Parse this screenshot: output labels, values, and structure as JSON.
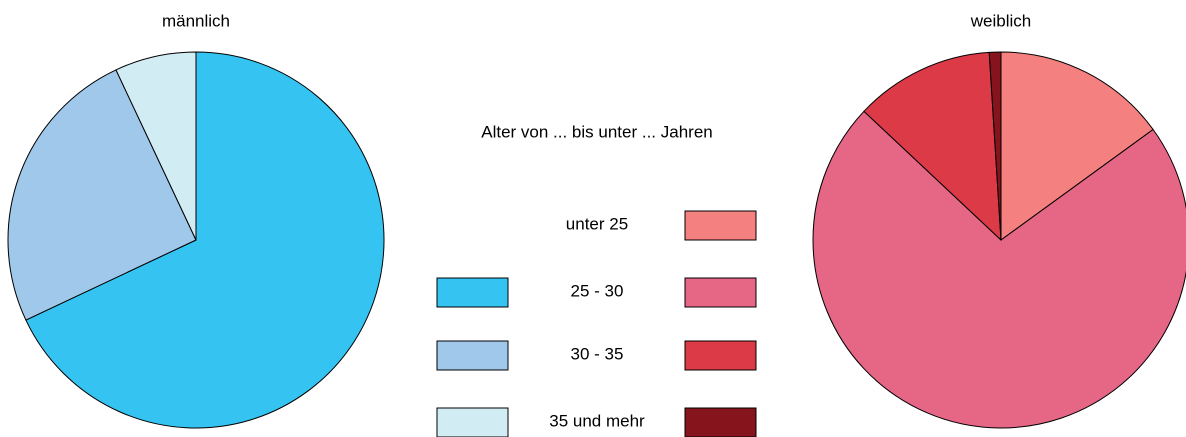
{
  "legend": {
    "title": "Alter von ... bis unter ... Jahren"
  },
  "chart_data": [
    {
      "type": "pie",
      "title": "männlich",
      "categories": [
        "unter 25",
        "25 - 30",
        "30 - 35",
        "35 und mehr"
      ],
      "values": [
        null,
        68,
        25,
        7
      ],
      "colors": [
        "#f48080",
        "#35c4f2",
        "#a0c8ea",
        "#d2ecf4"
      ]
    },
    {
      "type": "pie",
      "title": "weiblich",
      "categories": [
        "unter 25",
        "25 - 30",
        "30 - 35",
        "35 und mehr"
      ],
      "values": [
        15,
        72,
        12,
        1
      ],
      "colors": [
        "#f48080",
        "#e66686",
        "#dc3a46",
        "#86141c"
      ]
    }
  ]
}
